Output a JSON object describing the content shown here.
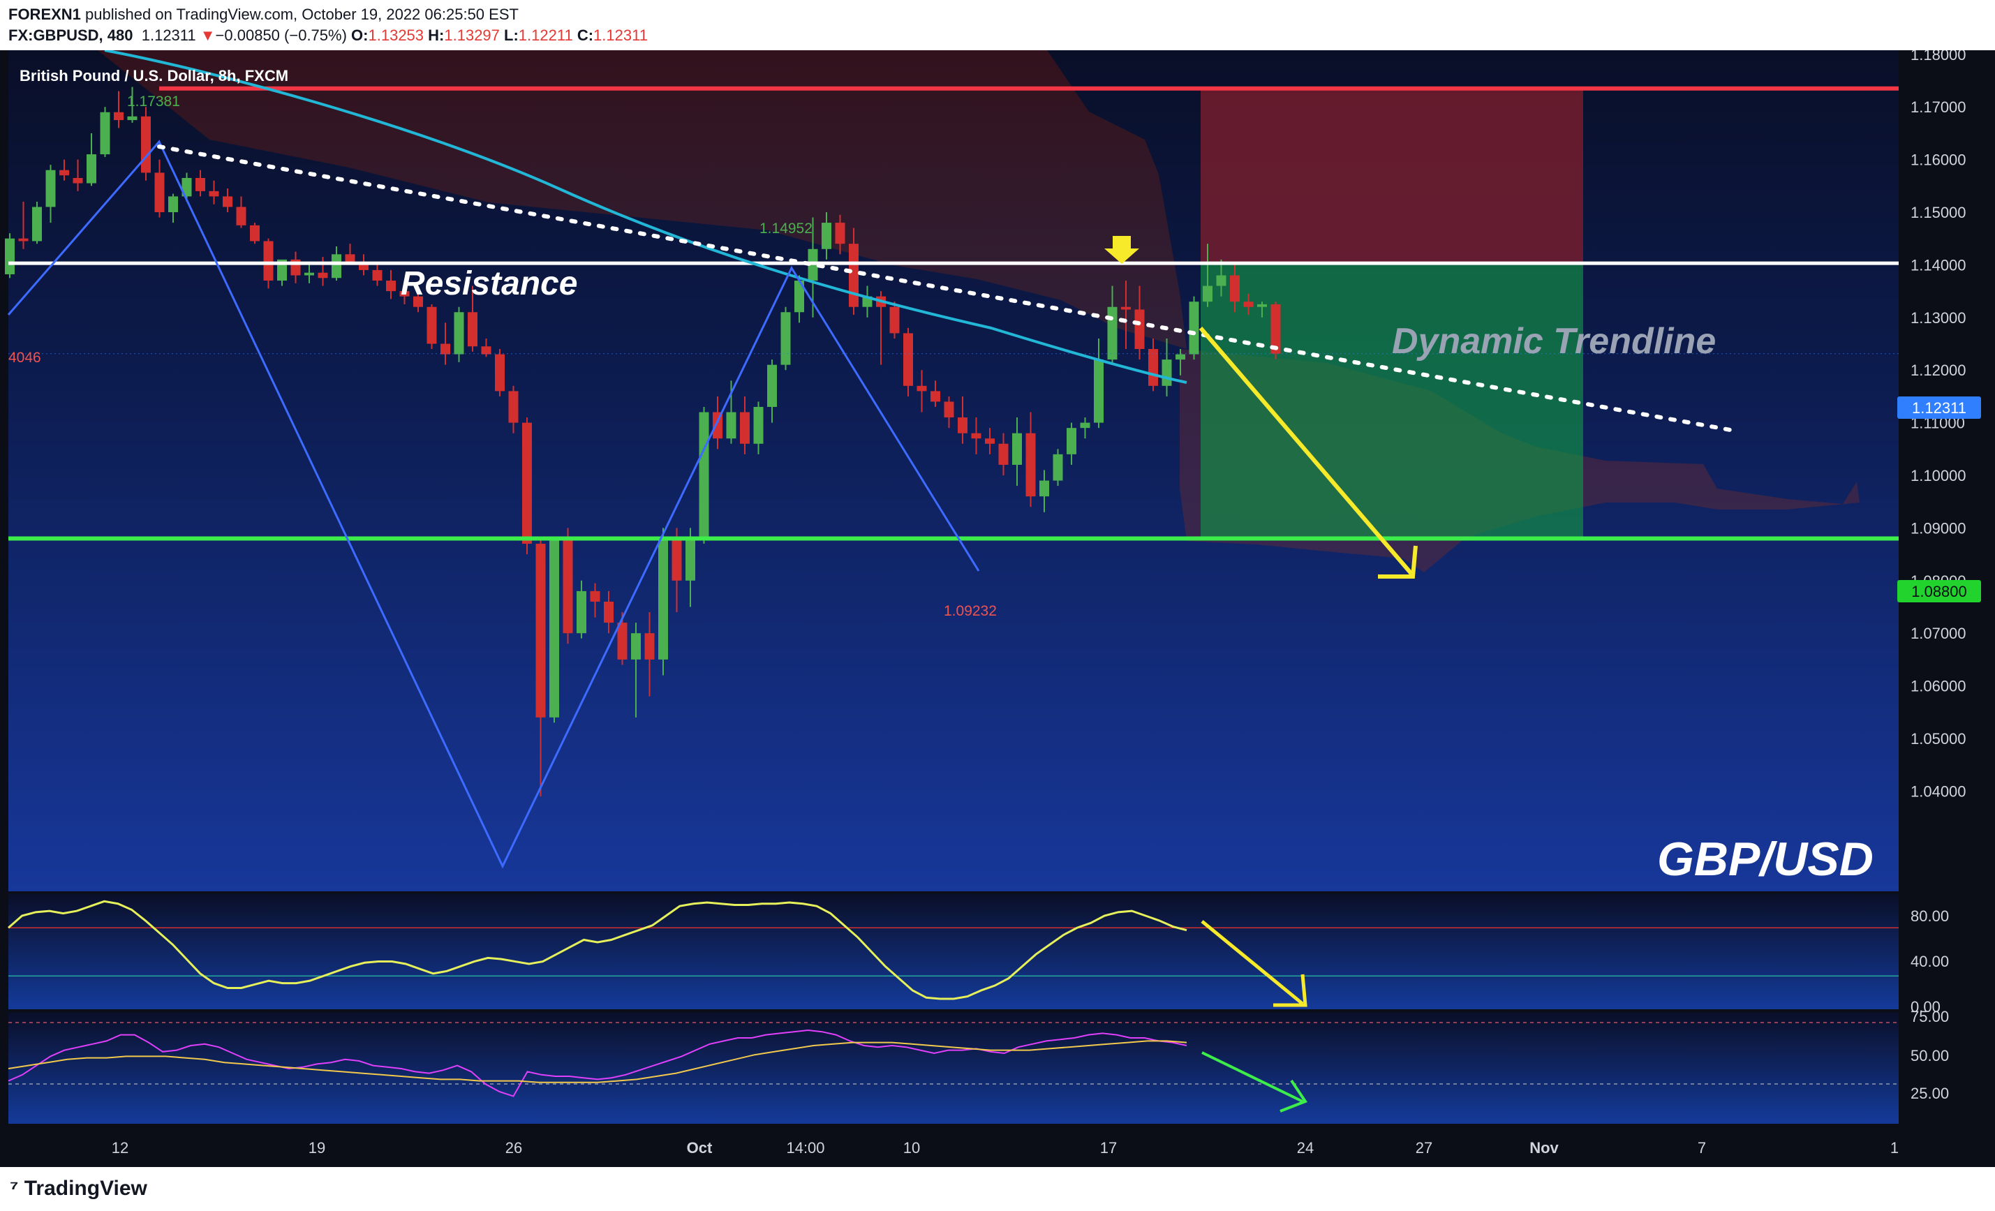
{
  "header": {
    "publisher": "FOREXN1",
    "published_text": "published on TradingView.com, October 19, 2022 06:25:50 EST",
    "symbol": "FX:GBPUSD, 480",
    "last": "1.12311",
    "arrow": "▼",
    "change": "−0.00850 (−0.75%)",
    "o_label": "O:",
    "o": "1.13253",
    "h_label": "H:",
    "h": "1.13297",
    "l_label": "L:",
    "l": "1.12211",
    "c_label": "C:",
    "c": "1.12311"
  },
  "chart_title": "British Pound / U.S. Dollar, 8h, FXCM",
  "annotations": {
    "resistance": "Resistance",
    "dynamic_trendline": "Dynamic Trendline",
    "pair": "GBP/USD",
    "high_label": "1.17381",
    "mid_high_label": "1.14952",
    "low_label": "1.09232",
    "left_clip_label": "4046",
    "current_price": "1.12311",
    "support_price": "1.08800"
  },
  "footer": {
    "brand": "TradingView"
  },
  "colors": {
    "up": "#4caf50",
    "down": "#d32f2f",
    "resistance": "#ffffff",
    "support": "#3ded4a",
    "stop": "#f23645",
    "ema": "#22b7d6",
    "zigzag": "#3d6bff",
    "arrow": "#f7ea2a",
    "rsi": "#e040fb"
  },
  "chart_data": [
    {
      "type": "candlestick",
      "title": "British Pound / U.S. Dollar, 8h, FXCM",
      "x_ticks": [
        "12",
        "19",
        "26",
        "Oct",
        "14:00",
        "10",
        "17",
        "24",
        "27",
        "Nov",
        "7",
        "1"
      ],
      "y_ticks": [
        "1.18000",
        "1.17000",
        "1.16000",
        "1.15000",
        "1.14000",
        "1.13000",
        "1.12000",
        "1.11000",
        "1.10000",
        "1.09000",
        "1.08000",
        "1.07000",
        "1.06000",
        "1.05000",
        "1.04000"
      ],
      "ylim": [
        1.0336,
        1.1864
      ],
      "resistance": 1.1403,
      "support": 1.088,
      "stop_loss": 1.1735,
      "candles": [
        [
          1.1382,
          1.146,
          1.1375,
          1.145
        ],
        [
          1.145,
          1.152,
          1.143,
          1.1445
        ],
        [
          1.1445,
          1.152,
          1.144,
          1.151
        ],
        [
          1.151,
          1.159,
          1.148,
          1.158
        ],
        [
          1.158,
          1.16,
          1.156,
          1.157
        ],
        [
          1.1565,
          1.16,
          1.154,
          1.1555
        ],
        [
          1.1555,
          1.165,
          1.155,
          1.161
        ],
        [
          1.161,
          1.17,
          1.1605,
          1.169
        ],
        [
          1.169,
          1.173,
          1.166,
          1.1675
        ],
        [
          1.1675,
          1.1738,
          1.167,
          1.1682
        ],
        [
          1.1682,
          1.17,
          1.156,
          1.1575
        ],
        [
          1.1575,
          1.16,
          1.149,
          1.15
        ],
        [
          1.15,
          1.1535,
          1.148,
          1.153
        ],
        [
          1.153,
          1.1575,
          1.152,
          1.1565
        ],
        [
          1.1565,
          1.158,
          1.153,
          1.154
        ],
        [
          1.154,
          1.156,
          1.1515,
          1.153
        ],
        [
          1.153,
          1.1545,
          1.15,
          1.151
        ],
        [
          1.151,
          1.153,
          1.147,
          1.1475
        ],
        [
          1.1475,
          1.148,
          1.144,
          1.1445
        ],
        [
          1.1445,
          1.145,
          1.1355,
          1.137
        ],
        [
          1.137,
          1.14,
          1.136,
          1.141
        ],
        [
          1.141,
          1.1425,
          1.1365,
          1.138
        ],
        [
          1.138,
          1.14,
          1.1365,
          1.1385
        ],
        [
          1.1385,
          1.1415,
          1.136,
          1.1375
        ],
        [
          1.1375,
          1.1435,
          1.137,
          1.142
        ],
        [
          1.142,
          1.144,
          1.14,
          1.1405
        ],
        [
          1.1405,
          1.142,
          1.138,
          1.139
        ],
        [
          1.139,
          1.1405,
          1.136,
          1.137
        ],
        [
          1.137,
          1.139,
          1.1335,
          1.135
        ],
        [
          1.135,
          1.137,
          1.1325,
          1.134
        ],
        [
          1.134,
          1.135,
          1.131,
          1.132
        ],
        [
          1.132,
          1.1325,
          1.124,
          1.125
        ],
        [
          1.125,
          1.129,
          1.121,
          1.123
        ],
        [
          1.123,
          1.132,
          1.1215,
          1.131
        ],
        [
          1.131,
          1.136,
          1.1235,
          1.1245
        ],
        [
          1.1245,
          1.126,
          1.1225,
          1.123
        ],
        [
          1.123,
          1.124,
          1.115,
          1.116
        ],
        [
          1.116,
          1.117,
          1.108,
          1.11
        ],
        [
          1.11,
          1.111,
          1.085,
          1.087
        ],
        [
          1.087,
          1.088,
          1.039,
          1.054
        ],
        [
          1.054,
          1.088,
          1.053,
          1.088
        ],
        [
          1.088,
          1.09,
          1.068,
          1.07
        ],
        [
          1.07,
          1.08,
          1.069,
          1.078
        ],
        [
          1.078,
          1.0795,
          1.073,
          1.076
        ],
        [
          1.076,
          1.078,
          1.07,
          1.072
        ],
        [
          1.072,
          1.074,
          1.064,
          1.065
        ],
        [
          1.065,
          1.072,
          1.054,
          1.07
        ],
        [
          1.07,
          1.074,
          1.058,
          1.065
        ],
        [
          1.065,
          1.09,
          1.062,
          1.088
        ],
        [
          1.088,
          1.09,
          1.074,
          1.08
        ],
        [
          1.08,
          1.09,
          1.075,
          1.088
        ],
        [
          1.088,
          1.113,
          1.087,
          1.112
        ],
        [
          1.112,
          1.115,
          1.105,
          1.107
        ],
        [
          1.107,
          1.118,
          1.106,
          1.112
        ],
        [
          1.112,
          1.115,
          1.104,
          1.106
        ],
        [
          1.106,
          1.114,
          1.104,
          1.113
        ],
        [
          1.113,
          1.122,
          1.11,
          1.121
        ],
        [
          1.121,
          1.132,
          1.12,
          1.131
        ],
        [
          1.131,
          1.138,
          1.129,
          1.137
        ],
        [
          1.137,
          1.149,
          1.13,
          1.143
        ],
        [
          1.143,
          1.15,
          1.141,
          1.148
        ],
        [
          1.148,
          1.1495,
          1.142,
          1.144
        ],
        [
          1.144,
          1.147,
          1.1305,
          1.132
        ],
        [
          1.132,
          1.136,
          1.13,
          1.134
        ],
        [
          1.134,
          1.135,
          1.121,
          1.132
        ],
        [
          1.132,
          1.133,
          1.126,
          1.127
        ],
        [
          1.127,
          1.128,
          1.115,
          1.117
        ],
        [
          1.117,
          1.12,
          1.112,
          1.116
        ],
        [
          1.116,
          1.118,
          1.113,
          1.114
        ],
        [
          1.114,
          1.115,
          1.109,
          1.111
        ],
        [
          1.111,
          1.115,
          1.106,
          1.108
        ],
        [
          1.108,
          1.111,
          1.104,
          1.107
        ],
        [
          1.107,
          1.109,
          1.104,
          1.106
        ],
        [
          1.106,
          1.108,
          1.1,
          1.102
        ],
        [
          1.102,
          1.111,
          1.098,
          1.108
        ],
        [
          1.108,
          1.112,
          1.094,
          1.096
        ],
        [
          1.096,
          1.101,
          1.093,
          1.099
        ],
        [
          1.099,
          1.105,
          1.098,
          1.104
        ],
        [
          1.104,
          1.11,
          1.102,
          1.109
        ],
        [
          1.109,
          1.111,
          1.107,
          1.11
        ],
        [
          1.11,
          1.126,
          1.109,
          1.122
        ],
        [
          1.122,
          1.136,
          1.121,
          1.132
        ],
        [
          1.132,
          1.137,
          1.124,
          1.1315
        ],
        [
          1.1315,
          1.136,
          1.122,
          1.124
        ],
        [
          1.124,
          1.126,
          1.116,
          1.117
        ],
        [
          1.117,
          1.126,
          1.115,
          1.122
        ],
        [
          1.122,
          1.124,
          1.119,
          1.123
        ],
        [
          1.123,
          1.134,
          1.122,
          1.133
        ],
        [
          1.133,
          1.144,
          1.132,
          1.136
        ],
        [
          1.136,
          1.141,
          1.134,
          1.138
        ],
        [
          1.138,
          1.14,
          1.131,
          1.133
        ],
        [
          1.133,
          1.1345,
          1.1305,
          1.132
        ],
        [
          1.132,
          1.133,
          1.13,
          1.1325
        ],
        [
          1.1325,
          1.133,
          1.1221,
          1.1231
        ]
      ]
    },
    {
      "type": "line",
      "name": "oscillator",
      "y_ticks": [
        "80.00",
        "40.00",
        "0.00"
      ],
      "ylim": [
        0,
        100
      ],
      "levels": [
        70,
        30
      ],
      "values": [
        70,
        80,
        83,
        84,
        82,
        84,
        88,
        92,
        90,
        85,
        76,
        66,
        56,
        44,
        32,
        24,
        20,
        20,
        23,
        26,
        24,
        24,
        26,
        30,
        34,
        38,
        41,
        42,
        42,
        40,
        36,
        32,
        34,
        38,
        42,
        45,
        44,
        42,
        40,
        42,
        48,
        54,
        60,
        58,
        60,
        64,
        68,
        72,
        80,
        88,
        90,
        91,
        90,
        89,
        89,
        90,
        90,
        91,
        90,
        88,
        82,
        72,
        62,
        50,
        38,
        28,
        18,
        12,
        11,
        11,
        13,
        18,
        22,
        28,
        38,
        48,
        56,
        64,
        70,
        74,
        80,
        83,
        84,
        80,
        76,
        71,
        68
      ]
    },
    {
      "type": "line",
      "name": "rsi",
      "y_ticks": [
        "75.00",
        "50.00",
        "25.00"
      ],
      "ylim": [
        10,
        80
      ],
      "levels": [
        70,
        30
      ],
      "values": [
        32,
        36,
        42,
        48,
        52,
        54,
        56,
        58,
        62,
        62,
        57,
        51,
        52,
        55,
        56,
        54,
        50,
        46,
        44,
        42,
        40,
        41,
        43,
        44,
        46,
        45,
        42,
        41,
        40,
        38,
        37,
        39,
        42,
        38,
        30,
        25,
        22,
        38,
        36,
        35,
        35,
        34,
        33,
        34,
        36,
        39,
        42,
        45,
        48,
        52,
        56,
        58,
        60,
        60,
        62,
        63,
        64,
        65,
        64,
        62,
        58,
        55,
        54,
        55,
        54,
        52,
        50,
        52,
        52,
        53,
        51,
        50,
        54,
        56,
        58,
        59,
        60,
        62,
        63,
        62,
        60,
        60,
        58,
        57,
        55
      ],
      "ma": [
        40,
        42,
        44,
        46,
        47,
        47,
        48,
        48,
        48,
        47,
        46,
        44,
        43,
        42,
        41,
        40,
        39,
        38,
        37,
        36,
        35,
        34,
        33,
        33,
        32,
        32,
        32,
        31,
        31,
        31,
        31,
        32,
        33,
        35,
        37,
        40,
        43,
        46,
        49,
        51,
        53,
        55,
        56,
        57,
        57,
        57,
        56,
        55,
        54,
        53,
        52,
        52,
        52,
        53,
        54,
        55,
        56,
        57,
        58,
        58,
        57
      ]
    }
  ]
}
